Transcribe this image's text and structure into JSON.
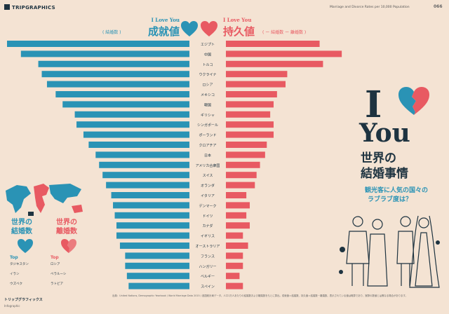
{
  "header": {
    "brand": "TRIPGRAPHICS",
    "note": "Marriage and Divorce Rates per 10,000 Population",
    "page": "066"
  },
  "titles": {
    "left_en": "I Love You",
    "left_ja": "成就値",
    "left_legend": "( 結婚数 )",
    "right_en": "I Love You",
    "right_ja": "持久値",
    "right_legend": "( ー 結婚数 ー 離婚数 )"
  },
  "poster": {
    "big_i": "I",
    "big_you": "You",
    "title_line1": "世界の",
    "title_line2": "結婚事情",
    "sub_line1": "観光客に人気の国々の",
    "sub_line2": "ラブラブ度は？"
  },
  "left_panel": {
    "marriage_line1": "世界の",
    "marriage_line2": "結婚数",
    "divorce_line1": "世界の",
    "divorce_line2": "離婚数",
    "top_label": "Top",
    "marriage_top": [
      "タジキスタン",
      "イラン",
      "ウズベク"
    ],
    "divorce_top": [
      "ロシア",
      "ベラルーシ",
      "ラトビア"
    ]
  },
  "footer": {
    "brand": "トリップグラフィックス",
    "note": "Infographic",
    "source": "出典：United Nations, Demographic Yearbook / World Marriage Data 2015 / 各国統計局データ。人口1万人あたりの結婚数および離婚数をもとに算出。成就値＝結婚数、持久値＝結婚数－離婚数。表示されている値は概算であり、実際の数値とは異なる場合があります。"
  },
  "colors": {
    "background": "#f4e3d3",
    "blue": "#2a93b5",
    "red": "#e85a62",
    "navy": "#1e3340"
  },
  "chart_data": {
    "type": "bar",
    "title": "",
    "categories": [
      "エジプト",
      "中国",
      "トルコ",
      "ウクライナ",
      "ロシア",
      "メキシコ",
      "韓国",
      "ギリシャ",
      "シンガポール",
      "ポーランド",
      "クロアチア",
      "日本",
      "アメリカ合衆国",
      "スイス",
      "オランダ",
      "イタリア",
      "デンマーク",
      "ドイツ",
      "カナダ",
      "イギリス",
      "オーストラリア",
      "フランス",
      "ハンガリー",
      "ベルギー",
      "スペイン"
    ],
    "series": [
      {
        "name": "成就値",
        "values": [
          105,
          97,
          87,
          85,
          82,
          77,
          73,
          66,
          65,
          61,
          58,
          54,
          52,
          50,
          48,
          45,
          44,
          43,
          42,
          42,
          40,
          37,
          37,
          36,
          35
        ]
      },
      {
        "name": "持久値",
        "values": [
          55,
          68,
          57,
          36,
          35,
          30,
          28,
          26,
          28,
          28,
          24,
          23,
          20,
          18,
          17,
          12,
          14,
          12,
          14,
          10,
          13,
          10,
          10,
          8,
          10
        ]
      }
    ]
  }
}
